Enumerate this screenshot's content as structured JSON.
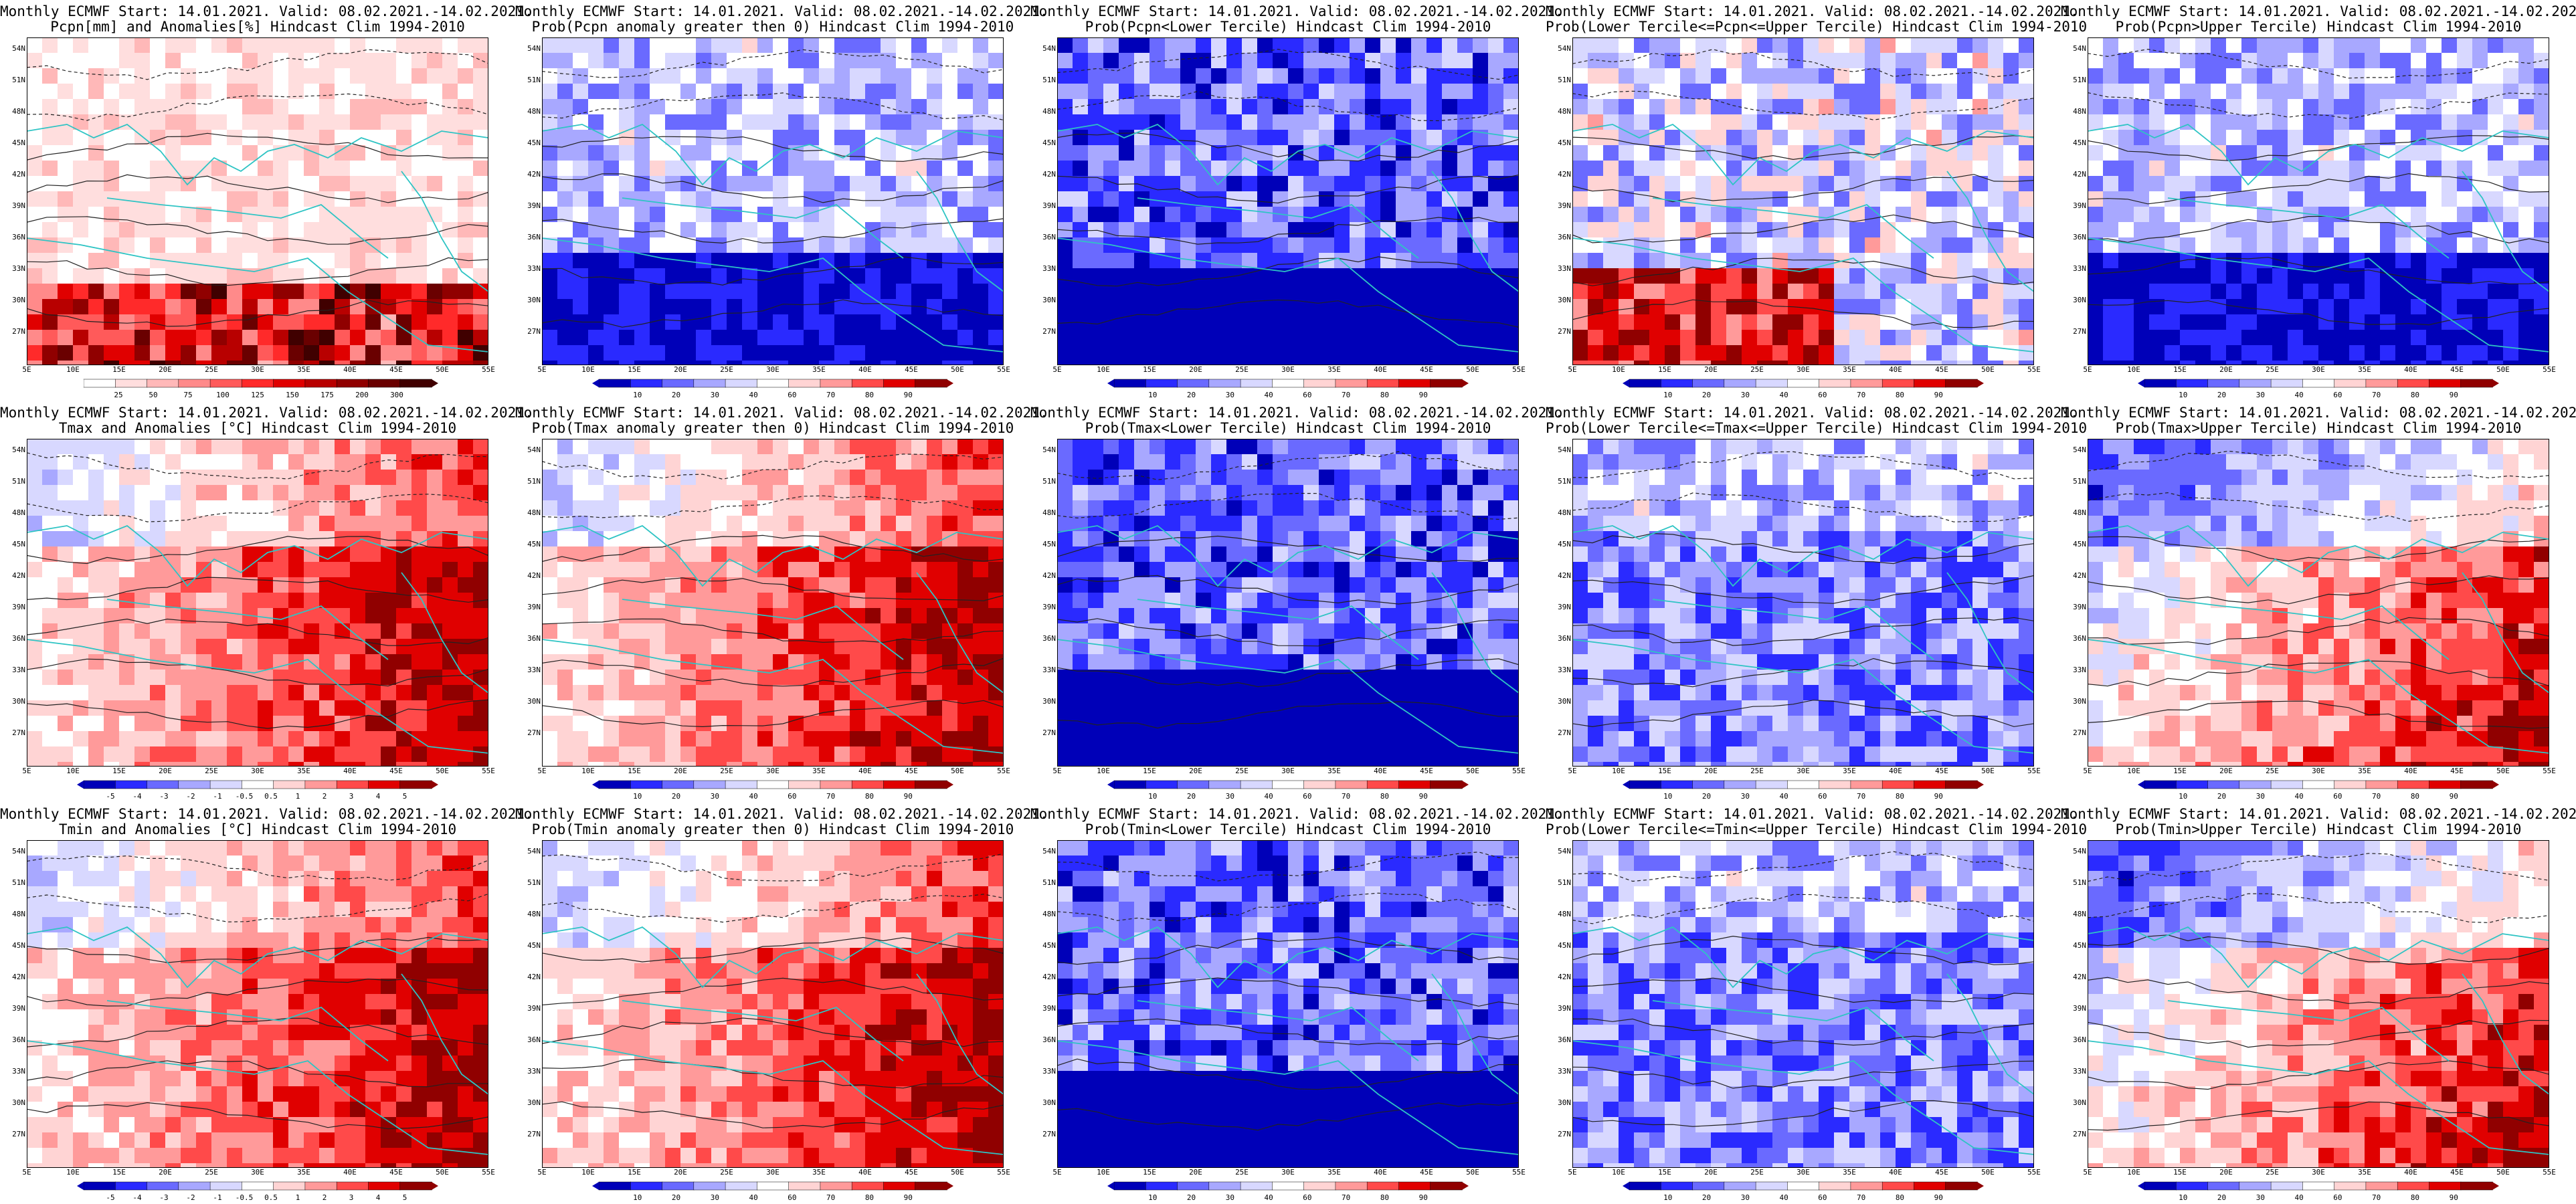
{
  "common": {
    "line1": "Monthly ECMWF Start: 14.01.2021. Valid: 08.02.2021.-14.02.2021.",
    "lat_labels": [
      "54N",
      "51N",
      "48N",
      "45N",
      "42N",
      "39N",
      "36N",
      "33N",
      "30N",
      "27N"
    ],
    "lon_labels": [
      "5E",
      "10E",
      "15E",
      "20E",
      "25E",
      "30E",
      "35E",
      "40E",
      "45E",
      "50E",
      "55E"
    ]
  },
  "colors": {
    "ocean_outline": "#2ec4c4",
    "contour": "#222222",
    "prob_scale": [
      "#0000b8",
      "#2a2aff",
      "#6a6aff",
      "#a8a8ff",
      "#d8d8ff",
      "#ffffff",
      "#ffd4d4",
      "#ff9a9a",
      "#ff4a4a",
      "#e00000",
      "#900000"
    ],
    "pcpn_scale": [
      "#ffffff",
      "#ffdede",
      "#ffb8b8",
      "#ff8a8a",
      "#ff5a5a",
      "#ff2a2a",
      "#e00000",
      "#b80000",
      "#900000",
      "#6a0000",
      "#400000"
    ],
    "anom_scale": [
      "#0000b8",
      "#2a2aff",
      "#6a6aff",
      "#a8a8ff",
      "#d8d8ff",
      "#ffffff",
      "#ffd4d4",
      "#ff9a9a",
      "#ff4a4a",
      "#e00000",
      "#900000"
    ]
  },
  "colorbars": {
    "prob": [
      "10",
      "20",
      "30",
      "40",
      "60",
      "70",
      "80",
      "90"
    ],
    "pcpn": [
      "25",
      "50",
      "75",
      "100",
      "125",
      "150",
      "175",
      "200",
      "300"
    ],
    "anom": [
      "-5",
      "-4",
      "-3",
      "-2",
      "-1",
      "-0.5",
      "0.5",
      "1",
      "2",
      "3",
      "4",
      "5"
    ]
  },
  "panels": [
    {
      "row": 0,
      "col": 0,
      "line2": "Pcpn[mm] and Anomalies[%] Hindcast Clim 1994-2010",
      "scale": "pcpn",
      "level": 0.28,
      "gradient": "south-red"
    },
    {
      "row": 0,
      "col": 1,
      "line2": "Prob(Pcpn anomaly greater then 0) Hindcast Clim 1994-2010",
      "scale": "prob",
      "level": 0.3,
      "gradient": "south-blue"
    },
    {
      "row": 0,
      "col": 2,
      "line2": "Prob(Pcpn<Lower Tercile) Hindcast Clim 1994-2010",
      "scale": "prob",
      "level": 0.2,
      "gradient": "all-blue"
    },
    {
      "row": 0,
      "col": 3,
      "line2": "Prob(Lower Tercile<=Pcpn<=Upper Tercile) Hindcast Clim 1994-2010",
      "scale": "prob",
      "level": 0.35,
      "gradient": "south-red-w"
    },
    {
      "row": 0,
      "col": 4,
      "line2": "Prob(Pcpn>Upper Tercile) Hindcast Clim 1994-2010",
      "scale": "prob",
      "level": 0.3,
      "gradient": "south-blue"
    },
    {
      "row": 1,
      "col": 0,
      "line2": "Tmax and Anomalies [°C] Hindcast Clim 1994-2010",
      "scale": "anom",
      "level": 0.75,
      "gradient": "east-red"
    },
    {
      "row": 1,
      "col": 1,
      "line2": "Prob(Tmax anomaly greater then 0) Hindcast Clim 1994-2010",
      "scale": "prob",
      "level": 0.8,
      "gradient": "east-red"
    },
    {
      "row": 1,
      "col": 2,
      "line2": "Prob(Tmax<Lower Tercile) Hindcast Clim 1994-2010",
      "scale": "prob",
      "level": 0.15,
      "gradient": "all-blue"
    },
    {
      "row": 1,
      "col": 3,
      "line2": "Prob(Lower Tercile<=Tmax<=Upper Tercile) Hindcast Clim 1994-2010",
      "scale": "prob",
      "level": 0.25,
      "gradient": "mid-blue"
    },
    {
      "row": 1,
      "col": 4,
      "line2": "Prob(Tmax>Upper Tercile) Hindcast Clim 1994-2010",
      "scale": "prob",
      "level": 0.7,
      "gradient": "se-red"
    },
    {
      "row": 2,
      "col": 0,
      "line2": "Tmin and Anomalies [°C] Hindcast Clim 1994-2010",
      "scale": "anom",
      "level": 0.75,
      "gradient": "east-red"
    },
    {
      "row": 2,
      "col": 1,
      "line2": "Prob(Tmin anomaly greater then 0) Hindcast Clim 1994-2010",
      "scale": "prob",
      "level": 0.8,
      "gradient": "east-red"
    },
    {
      "row": 2,
      "col": 2,
      "line2": "Prob(Tmin<Lower Tercile) Hindcast Clim 1994-2010",
      "scale": "prob",
      "level": 0.1,
      "gradient": "all-blue"
    },
    {
      "row": 2,
      "col": 3,
      "line2": "Prob(Lower Tercile<=Tmin<=Upper Tercile) Hindcast Clim 1994-2010",
      "scale": "prob",
      "level": 0.25,
      "gradient": "mid-blue"
    },
    {
      "row": 2,
      "col": 4,
      "line2": "Prob(Tmin>Upper Tercile) Hindcast Clim 1994-2010",
      "scale": "prob",
      "level": 0.7,
      "gradient": "se-red"
    }
  ]
}
